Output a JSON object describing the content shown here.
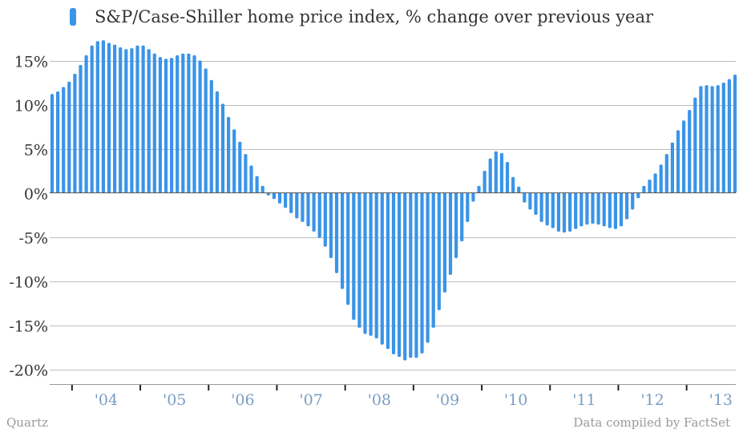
{
  "footer": {
    "source_left": "Quartz",
    "source_right": "Data compiled by FactSet"
  },
  "chart_data": {
    "type": "bar",
    "title": "S&P/Case-Shiller home price index, % change over previous year",
    "xlabel": "",
    "ylabel": "",
    "ylim": [
      -20.5,
      18.5
    ],
    "yticks": [
      15,
      10,
      5,
      0,
      -5,
      -10,
      -15,
      -20
    ],
    "ytick_labels": [
      "15%",
      "10%",
      "5%",
      "0%",
      "-5%",
      "-10%",
      "-15%",
      "-20%"
    ],
    "xtick_labels": [
      "'04",
      "'05",
      "'06",
      "'07",
      "'08",
      "'09",
      "'10",
      "'11",
      "'12",
      "'13"
    ],
    "grid": true,
    "legend": "top-left",
    "colors": {
      "bar": "#3a94e8",
      "grid": "#bdbdbd",
      "zero_line": "#555555",
      "xtick_text": "#7b9dc3"
    },
    "series": [
      {
        "name": "S&P/Case-Shiller home price index, % change over previous year",
        "values": [
          11.2,
          11.5,
          12.0,
          12.6,
          13.5,
          14.5,
          15.6,
          16.7,
          17.2,
          17.3,
          17.0,
          16.8,
          16.5,
          16.3,
          16.4,
          16.7,
          16.7,
          16.3,
          15.8,
          15.4,
          15.2,
          15.3,
          15.6,
          15.8,
          15.8,
          15.6,
          15.0,
          14.1,
          12.8,
          11.5,
          10.1,
          8.6,
          7.2,
          5.8,
          4.4,
          3.1,
          1.9,
          0.8,
          -0.3,
          -0.7,
          -1.2,
          -1.7,
          -2.3,
          -2.9,
          -3.3,
          -3.8,
          -4.4,
          -5.1,
          -6.1,
          -7.4,
          -9.1,
          -10.9,
          -12.7,
          -14.4,
          -15.3,
          -16.0,
          -16.2,
          -16.5,
          -17.2,
          -17.7,
          -18.3,
          -18.6,
          -19.0,
          -18.7,
          -18.7,
          -18.2,
          -17.0,
          -15.3,
          -13.3,
          -11.3,
          -9.3,
          -7.4,
          -5.5,
          -3.3,
          -1.0,
          0.8,
          2.5,
          3.9,
          4.7,
          4.5,
          3.5,
          1.8,
          0.7,
          -1.1,
          -1.9,
          -2.5,
          -3.3,
          -3.7,
          -4.0,
          -4.4,
          -4.5,
          -4.4,
          -4.1,
          -3.8,
          -3.6,
          -3.5,
          -3.6,
          -3.8,
          -4.0,
          -4.1,
          -3.8,
          -3.0,
          -1.9,
          -0.6,
          0.8,
          1.5,
          2.2,
          3.2,
          4.4,
          5.7,
          7.1,
          8.2,
          9.4,
          10.8,
          12.1,
          12.2,
          12.1,
          12.2,
          12.5,
          12.9,
          13.4
        ]
      }
    ]
  }
}
